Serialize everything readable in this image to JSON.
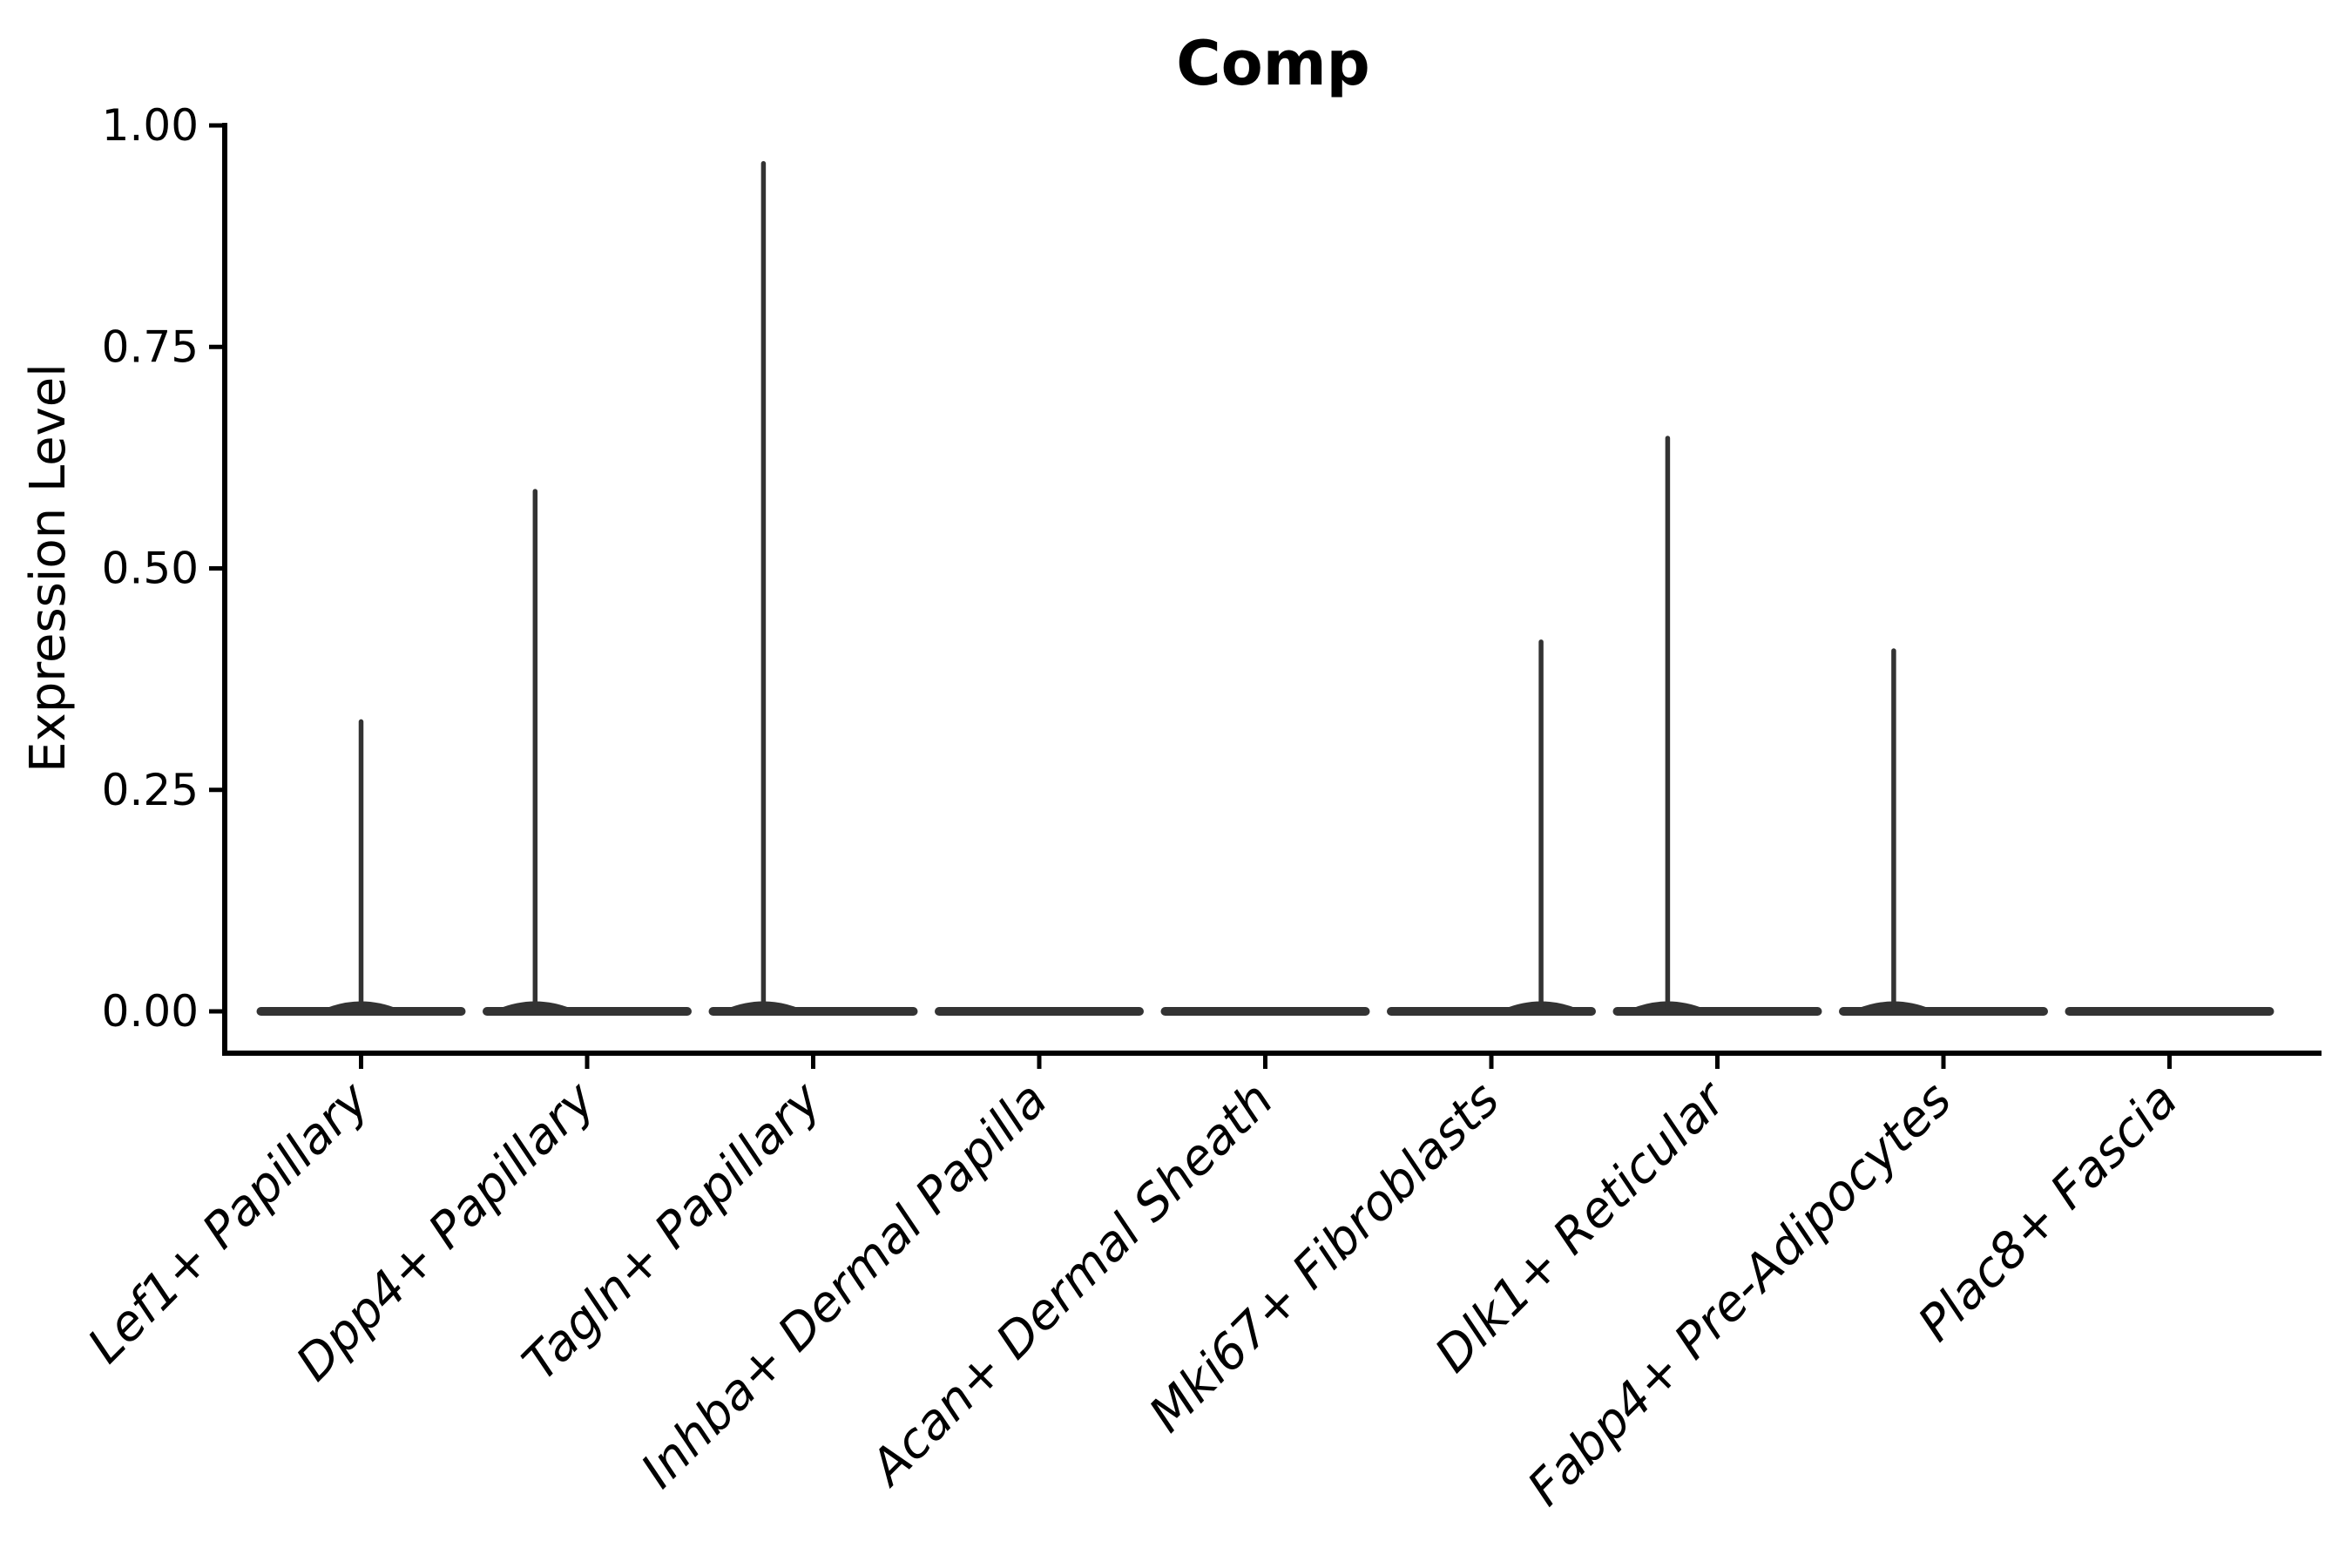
{
  "title": "Comp",
  "chart_data": {
    "type": "violin",
    "title": "Comp",
    "ylabel": "Expression Level",
    "xlabel": "",
    "ylim": [
      0,
      1
    ],
    "yticks": [
      "0.00",
      "0.25",
      "0.50",
      "0.75",
      "1.00"
    ],
    "ytick_values": [
      0.0,
      0.25,
      0.5,
      0.75,
      1.0
    ],
    "categories": [
      "Lef1+ Papillary",
      "Dpp4+ Papillary",
      "Tagln+ Papillary",
      "Inhba+ Dermal Papilla",
      "Acan+ Dermal Sheath",
      "Mki67+ Fibroblasts",
      "Dlk1+ Reticular",
      "Fabp4+ Pre-Adipocytes",
      "Plac8+ Fascia"
    ],
    "series": [
      {
        "name": "Comp",
        "peak_values": [
          0.33,
          0.59,
          0.96,
          0.0,
          0.0,
          0.42,
          0.65,
          0.41,
          0.0
        ],
        "baseline_value": 0.0
      }
    ],
    "style": {
      "violin_color": "#333333",
      "axis_color": "#000000",
      "grid": false,
      "legend": false,
      "x_label_rotation_deg": 45,
      "x_label_italic": true,
      "spike_offset_fraction": [
        0,
        -0.23,
        -0.22,
        0,
        0,
        0.22,
        -0.22,
        -0.22,
        0
      ]
    }
  }
}
